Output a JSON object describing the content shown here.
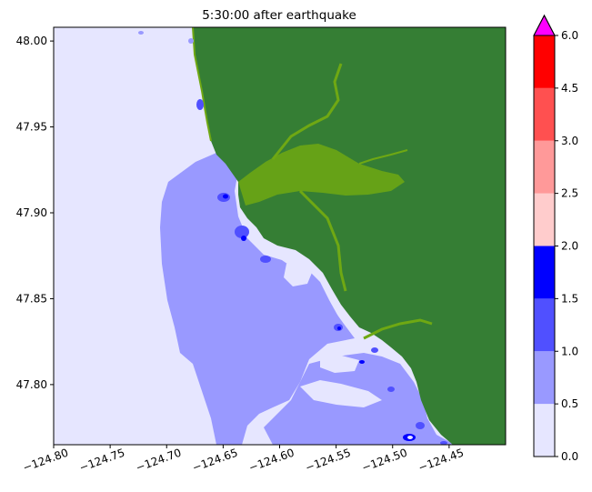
{
  "chart_data": {
    "type": "heatmap",
    "title": "5:30:00 after earthquake",
    "xlabel": "",
    "ylabel": "",
    "xlim": [
      -124.8,
      -124.4
    ],
    "ylim": [
      47.765,
      48.008
    ],
    "x_ticks": [
      -124.8,
      -124.75,
      -124.7,
      -124.65,
      -124.6,
      -124.55,
      -124.5,
      -124.45
    ],
    "x_tick_labels": [
      "−124.80",
      "−124.75",
      "−124.70",
      "−124.65",
      "−124.60",
      "−124.55",
      "−124.50",
      "−124.45"
    ],
    "y_ticks": [
      47.8,
      47.85,
      47.9,
      47.95,
      48.0
    ],
    "y_tick_labels": [
      "47.80",
      "47.85",
      "47.90",
      "47.95",
      "48.00"
    ],
    "colorbar": {
      "levels": [
        0.0,
        0.5,
        1.0,
        1.5,
        2.0,
        2.5,
        3.0,
        4.5,
        6.0
      ],
      "level_labels": [
        "0.0",
        "0.5",
        "1.0",
        "1.5",
        "2.0",
        "2.5",
        "3.0",
        "4.5",
        "6.0"
      ],
      "colors": [
        "#e6e6ff",
        "#9999ff",
        "#5050ff",
        "#0000ff",
        "#ffcccc",
        "#ff9999",
        "#ff5050",
        "#ff0000"
      ],
      "extend": "max",
      "over_color": "#ff00ff"
    },
    "land_color": "#357e34",
    "inundation_color": "#6fa813",
    "grid": false
  }
}
